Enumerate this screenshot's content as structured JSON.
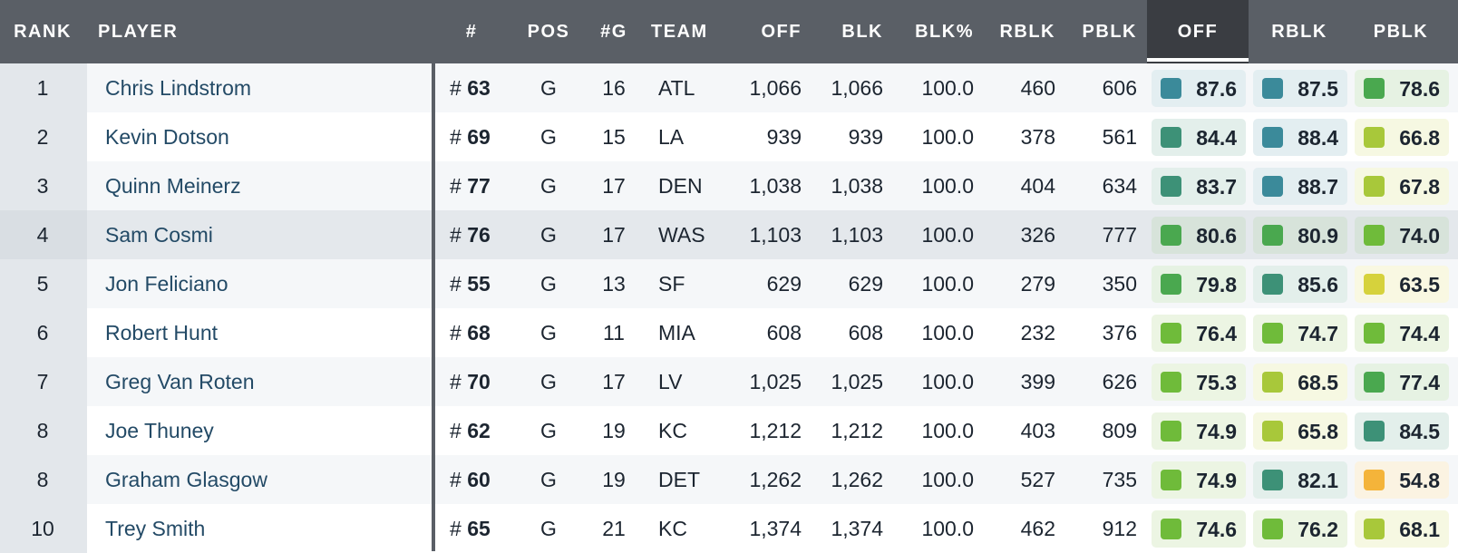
{
  "header": {
    "rank": "RANK",
    "player": "PLAYER",
    "num": "#",
    "pos": "POS",
    "games": "#G",
    "team": "TEAM",
    "off_snaps": "OFF",
    "blk": "BLK",
    "blk_pct": "BLK%",
    "rblk_snaps": "RBLK",
    "pblk_snaps": "PBLK",
    "off_grade": "OFF",
    "rblk_grade": "RBLK",
    "pblk_grade": "PBLK"
  },
  "colors": {
    "teal": "#3b8a9a",
    "teal_green": "#3d9177",
    "green": "#4aa84f",
    "light_green": "#6fbb3a",
    "yellow_green": "#a8c83a",
    "yellow": "#d6d23c",
    "orange": "#f4b43a"
  },
  "rows": [
    {
      "rank": "1",
      "player": "Chris Lindstrom",
      "hash": "#",
      "num": "63",
      "pos": "G",
      "games": "16",
      "team": "ATL",
      "off": "1,066",
      "blk": "1,066",
      "blk_pct": "100.0",
      "rblk": "460",
      "pblk": "606",
      "grades": [
        {
          "value": "87.6",
          "color": "teal",
          "bg": "#e3eef1"
        },
        {
          "value": "87.5",
          "color": "teal",
          "bg": "#e3eef1"
        },
        {
          "value": "78.6",
          "color": "green",
          "bg": "#e6f2e3"
        }
      ]
    },
    {
      "rank": "2",
      "player": "Kevin Dotson",
      "hash": "#",
      "num": "69",
      "pos": "G",
      "games": "15",
      "team": "LA",
      "off": "939",
      "blk": "939",
      "blk_pct": "100.0",
      "rblk": "378",
      "pblk": "561",
      "grades": [
        {
          "value": "84.4",
          "color": "teal_green",
          "bg": "#e3efeb"
        },
        {
          "value": "88.4",
          "color": "teal",
          "bg": "#e3eef1"
        },
        {
          "value": "66.8",
          "color": "yellow_green",
          "bg": "#f6f8e2"
        }
      ]
    },
    {
      "rank": "3",
      "player": "Quinn Meinerz",
      "hash": "#",
      "num": "77",
      "pos": "G",
      "games": "17",
      "team": "DEN",
      "off": "1,038",
      "blk": "1,038",
      "blk_pct": "100.0",
      "rblk": "404",
      "pblk": "634",
      "grades": [
        {
          "value": "83.7",
          "color": "teal_green",
          "bg": "#e3efeb"
        },
        {
          "value": "88.7",
          "color": "teal",
          "bg": "#e3eef1"
        },
        {
          "value": "67.8",
          "color": "yellow_green",
          "bg": "#f6f8e2"
        }
      ]
    },
    {
      "rank": "4",
      "player": "Sam Cosmi",
      "hash": "#",
      "num": "76",
      "pos": "G",
      "games": "17",
      "team": "WAS",
      "off": "1,103",
      "blk": "1,103",
      "blk_pct": "100.0",
      "rblk": "326",
      "pblk": "777",
      "grades": [
        {
          "value": "80.6",
          "color": "green",
          "bg": "#dde8df"
        },
        {
          "value": "80.9",
          "color": "green",
          "bg": "#dde8df"
        },
        {
          "value": "74.0",
          "color": "light_green",
          "bg": "#e2ebdc"
        }
      ]
    },
    {
      "rank": "5",
      "player": "Jon Feliciano",
      "hash": "#",
      "num": "55",
      "pos": "G",
      "games": "13",
      "team": "SF",
      "off": "629",
      "blk": "629",
      "blk_pct": "100.0",
      "rblk": "279",
      "pblk": "350",
      "grades": [
        {
          "value": "79.8",
          "color": "green",
          "bg": "#e6f2e3"
        },
        {
          "value": "85.6",
          "color": "teal_green",
          "bg": "#e3efeb"
        },
        {
          "value": "63.5",
          "color": "yellow",
          "bg": "#f9f8e2"
        }
      ]
    },
    {
      "rank": "6",
      "player": "Robert Hunt",
      "hash": "#",
      "num": "68",
      "pos": "G",
      "games": "11",
      "team": "MIA",
      "off": "608",
      "blk": "608",
      "blk_pct": "100.0",
      "rblk": "232",
      "pblk": "376",
      "grades": [
        {
          "value": "76.4",
          "color": "light_green",
          "bg": "#ecf5e3"
        },
        {
          "value": "74.7",
          "color": "light_green",
          "bg": "#ecf5e3"
        },
        {
          "value": "74.4",
          "color": "light_green",
          "bg": "#ecf5e3"
        }
      ]
    },
    {
      "rank": "7",
      "player": "Greg Van Roten",
      "hash": "#",
      "num": "70",
      "pos": "G",
      "games": "17",
      "team": "LV",
      "off": "1,025",
      "blk": "1,025",
      "blk_pct": "100.0",
      "rblk": "399",
      "pblk": "626",
      "grades": [
        {
          "value": "75.3",
          "color": "light_green",
          "bg": "#ecf5e3"
        },
        {
          "value": "68.5",
          "color": "yellow_green",
          "bg": "#f6f8e2"
        },
        {
          "value": "77.4",
          "color": "green",
          "bg": "#e6f2e3"
        }
      ]
    },
    {
      "rank": "8",
      "player": "Joe Thuney",
      "hash": "#",
      "num": "62",
      "pos": "G",
      "games": "19",
      "team": "KC",
      "off": "1,212",
      "blk": "1,212",
      "blk_pct": "100.0",
      "rblk": "403",
      "pblk": "809",
      "grades": [
        {
          "value": "74.9",
          "color": "light_green",
          "bg": "#ecf5e3"
        },
        {
          "value": "65.8",
          "color": "yellow_green",
          "bg": "#f6f8e2"
        },
        {
          "value": "84.5",
          "color": "teal_green",
          "bg": "#e3efeb"
        }
      ]
    },
    {
      "rank": "8",
      "player": "Graham Glasgow",
      "hash": "#",
      "num": "60",
      "pos": "G",
      "games": "19",
      "team": "DET",
      "off": "1,262",
      "blk": "1,262",
      "blk_pct": "100.0",
      "rblk": "527",
      "pblk": "735",
      "grades": [
        {
          "value": "74.9",
          "color": "light_green",
          "bg": "#ecf5e3"
        },
        {
          "value": "82.1",
          "color": "teal_green",
          "bg": "#e3efeb"
        },
        {
          "value": "54.8",
          "color": "orange",
          "bg": "#fbf3e2"
        }
      ]
    },
    {
      "rank": "10",
      "player": "Trey Smith",
      "hash": "#",
      "num": "65",
      "pos": "G",
      "games": "21",
      "team": "KC",
      "off": "1,374",
      "blk": "1,374",
      "blk_pct": "100.0",
      "rblk": "462",
      "pblk": "912",
      "grades": [
        {
          "value": "74.6",
          "color": "light_green",
          "bg": "#ecf5e3"
        },
        {
          "value": "76.2",
          "color": "light_green",
          "bg": "#ecf5e3"
        },
        {
          "value": "68.1",
          "color": "yellow_green",
          "bg": "#f6f8e2"
        }
      ]
    }
  ]
}
